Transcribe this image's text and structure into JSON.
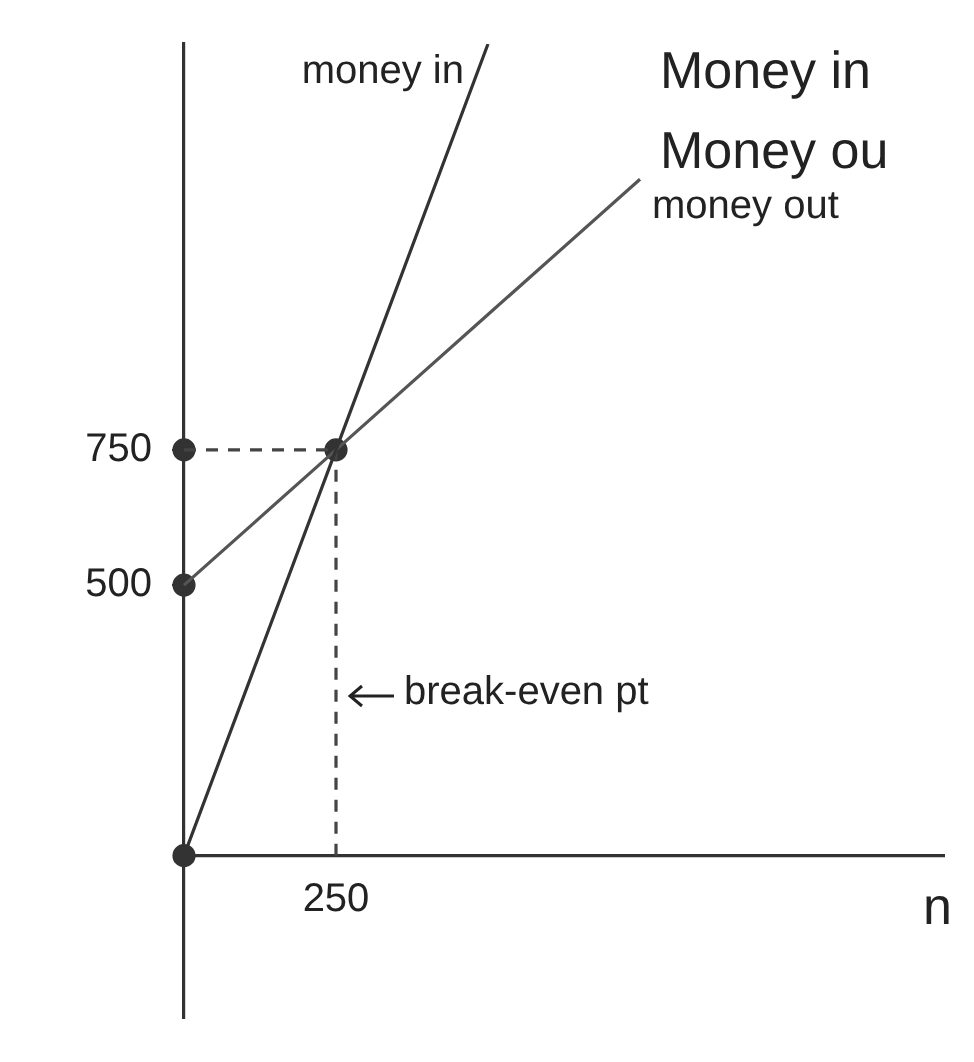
{
  "chart_data": {
    "type": "line",
    "xlabel": "n",
    "categories": [
      null,
      "250",
      null,
      null,
      null,
      null
    ],
    "ylim": [
      -300,
      1500
    ],
    "yticks": [
      500,
      750
    ],
    "grid": false,
    "legend": false,
    "series": [
      {
        "name": "money in",
        "color": "#333333",
        "type": "line",
        "marker": "none",
        "line_style": "solid",
        "values": [
          0,
          750,
          1500,
          null,
          null,
          null
        ]
      },
      {
        "name": "money out",
        "color": "#555555",
        "type": "line",
        "marker": "none",
        "line_style": "solid",
        "values": [
          500,
          750,
          1000,
          1250,
          null,
          null
        ]
      },
      {
        "color": "#444444",
        "type": "line",
        "marker": "none",
        "line_style": "dashed",
        "values": [
          750,
          750,
          null,
          null,
          null,
          null
        ]
      },
      {
        "color": "#444444",
        "type": "line",
        "marker": "none",
        "line_style": "dashed",
        "x": [
          "250",
          "250"
        ],
        "values": [
          0,
          750
        ]
      },
      {
        "color": "#333333",
        "type": "scatter",
        "marker": "circle",
        "values": [
          0,
          750,
          null,
          null,
          null,
          null
        ]
      },
      {
        "color": "#333333",
        "type": "scatter",
        "marker": "circle",
        "values": [
          500,
          null,
          null,
          null,
          null,
          null
        ]
      },
      {
        "color": "#333333",
        "type": "scatter",
        "marker": "circle",
        "values": [
          750,
          null,
          null,
          null,
          null,
          null
        ]
      }
    ],
    "annotations": [
      "Money in",
      "Money ou",
      {
        "text": "break-even pt",
        "x": "250",
        "y": 300
      }
    ]
  }
}
